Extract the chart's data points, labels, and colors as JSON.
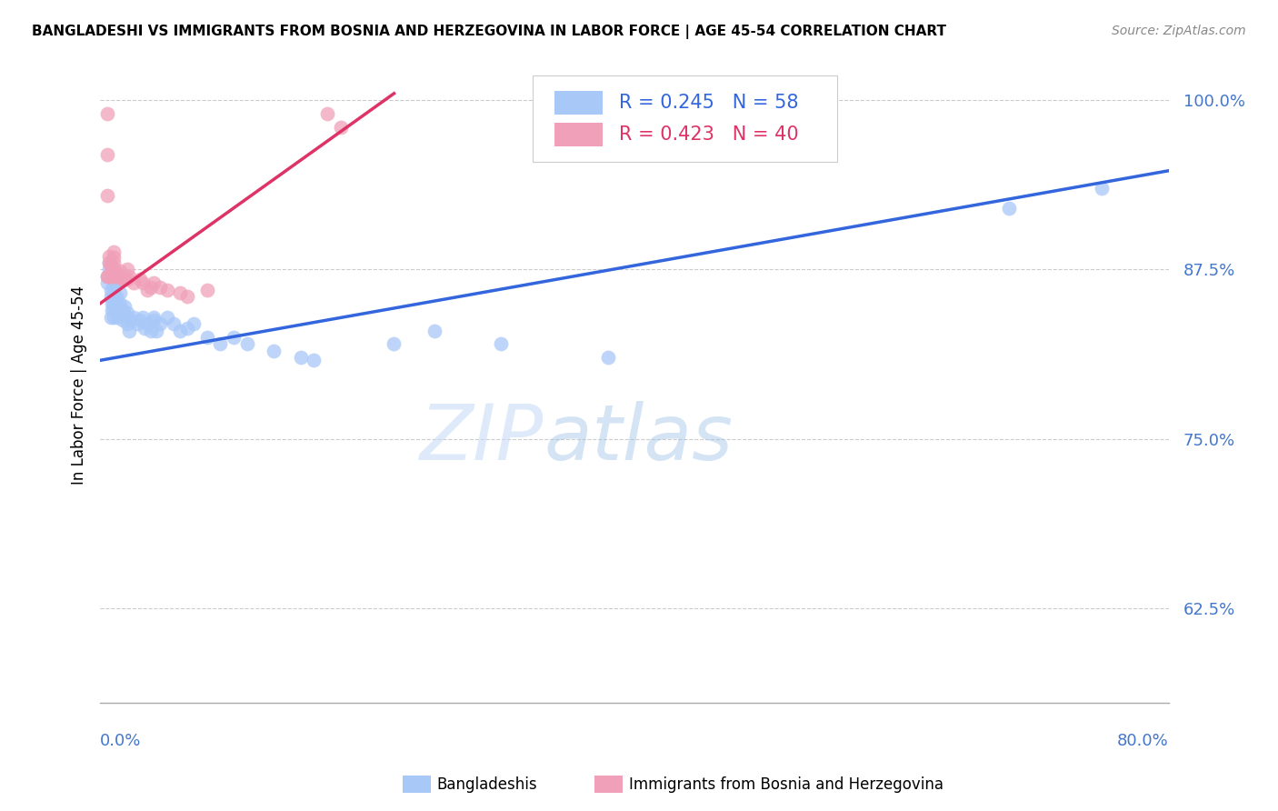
{
  "title": "BANGLADESHI VS IMMIGRANTS FROM BOSNIA AND HERZEGOVINA IN LABOR FORCE | AGE 45-54 CORRELATION CHART",
  "source": "Source: ZipAtlas.com",
  "ylabel": "In Labor Force | Age 45-54",
  "xmin": 0.0,
  "xmax": 0.8,
  "ymin": 0.555,
  "ymax": 1.025,
  "yticks": [
    0.625,
    0.75,
    0.875,
    1.0
  ],
  "ytick_labels": [
    "62.5%",
    "75.0%",
    "87.5%",
    "100.0%"
  ],
  "blue_color": "#a8c8f8",
  "pink_color": "#f0a0b8",
  "blue_line_color": "#3366dd",
  "pink_line_color": "#dd3366",
  "watermark_zip": "ZIP",
  "watermark_atlas": "atlas",
  "blue_x": [
    0.005,
    0.005,
    0.007,
    0.007,
    0.008,
    0.008,
    0.008,
    0.009,
    0.009,
    0.01,
    0.01,
    0.01,
    0.01,
    0.01,
    0.01,
    0.012,
    0.012,
    0.013,
    0.013,
    0.015,
    0.015,
    0.016,
    0.017,
    0.018,
    0.018,
    0.02,
    0.02,
    0.022,
    0.023,
    0.025,
    0.028,
    0.03,
    0.032,
    0.033,
    0.035,
    0.038,
    0.04,
    0.04,
    0.042,
    0.045,
    0.05,
    0.055,
    0.06,
    0.065,
    0.07,
    0.08,
    0.09,
    0.1,
    0.11,
    0.13,
    0.15,
    0.16,
    0.22,
    0.25,
    0.3,
    0.38,
    0.68,
    0.75
  ],
  "blue_y": [
    0.87,
    0.865,
    0.875,
    0.88,
    0.84,
    0.855,
    0.86,
    0.845,
    0.85,
    0.84,
    0.845,
    0.85,
    0.858,
    0.862,
    0.868,
    0.855,
    0.865,
    0.84,
    0.848,
    0.85,
    0.858,
    0.845,
    0.838,
    0.842,
    0.848,
    0.835,
    0.843,
    0.83,
    0.838,
    0.84,
    0.835,
    0.838,
    0.84,
    0.832,
    0.835,
    0.83,
    0.838,
    0.84,
    0.83,
    0.835,
    0.84,
    0.835,
    0.83,
    0.832,
    0.835,
    0.825,
    0.82,
    0.825,
    0.82,
    0.815,
    0.81,
    0.808,
    0.82,
    0.83,
    0.82,
    0.81,
    0.92,
    0.935
  ],
  "pink_x": [
    0.005,
    0.005,
    0.005,
    0.005,
    0.006,
    0.007,
    0.007,
    0.008,
    0.008,
    0.008,
    0.009,
    0.009,
    0.01,
    0.01,
    0.01,
    0.01,
    0.01,
    0.01,
    0.012,
    0.013,
    0.015,
    0.015,
    0.017,
    0.018,
    0.02,
    0.02,
    0.022,
    0.025,
    0.03,
    0.032,
    0.035,
    0.038,
    0.04,
    0.045,
    0.05,
    0.06,
    0.065,
    0.08,
    0.17,
    0.18
  ],
  "pink_y": [
    0.99,
    0.96,
    0.93,
    0.87,
    0.87,
    0.88,
    0.885,
    0.878,
    0.872,
    0.878,
    0.87,
    0.875,
    0.87,
    0.872,
    0.876,
    0.88,
    0.884,
    0.888,
    0.872,
    0.87,
    0.87,
    0.874,
    0.868,
    0.868,
    0.868,
    0.875,
    0.87,
    0.865,
    0.868,
    0.865,
    0.86,
    0.862,
    0.865,
    0.862,
    0.86,
    0.858,
    0.855,
    0.86,
    0.99,
    0.98
  ],
  "blue_trendline_x0": 0.0,
  "blue_trendline_y0": 0.808,
  "blue_trendline_x1": 0.8,
  "blue_trendline_y1": 0.948,
  "pink_trendline_x0": 0.0,
  "pink_trendline_y0": 0.85,
  "pink_trendline_x1": 0.22,
  "pink_trendline_y1": 1.005
}
